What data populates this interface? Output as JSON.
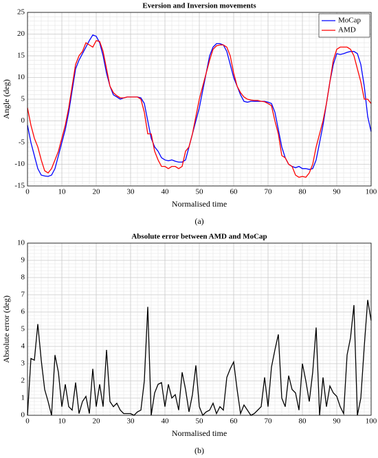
{
  "chart_data": [
    {
      "type": "line",
      "title": "Eversion and Inversion movements",
      "xlabel": "Normalised time",
      "ylabel": "Angle (deg)",
      "caption": "(a)",
      "x": [
        0,
        1,
        2,
        3,
        4,
        5,
        6,
        7,
        8,
        9,
        10,
        11,
        12,
        13,
        14,
        15,
        16,
        17,
        18,
        19,
        20,
        21,
        22,
        23,
        24,
        25,
        26,
        27,
        28,
        29,
        30,
        31,
        32,
        33,
        34,
        35,
        36,
        37,
        38,
        39,
        40,
        41,
        42,
        43,
        44,
        45,
        46,
        47,
        48,
        49,
        50,
        51,
        52,
        53,
        54,
        55,
        56,
        57,
        58,
        59,
        60,
        61,
        62,
        63,
        64,
        65,
        66,
        67,
        68,
        69,
        70,
        71,
        72,
        73,
        74,
        75,
        76,
        77,
        78,
        79,
        80,
        81,
        82,
        83,
        84,
        85,
        86,
        87,
        88,
        89,
        90,
        91,
        92,
        93,
        94,
        95,
        96,
        97,
        98,
        99,
        100
      ],
      "series": [
        {
          "name": "MoCap",
          "color": "#0000ff",
          "values": [
            -1,
            -5,
            -8,
            -11,
            -12.5,
            -12.7,
            -12.8,
            -12.5,
            -11,
            -8,
            -5,
            -2,
            2,
            7,
            12,
            14,
            15.5,
            17,
            18.5,
            19.8,
            19.5,
            18,
            15,
            11,
            8,
            6,
            5.5,
            5,
            5.3,
            5.5,
            5.5,
            5.5,
            5.5,
            5.3,
            4,
            0,
            -4,
            -6,
            -7,
            -8.5,
            -9,
            -9.2,
            -9,
            -9.3,
            -9.5,
            -9.5,
            -9,
            -6,
            -3,
            0,
            3,
            7,
            11,
            15,
            17,
            17.8,
            17.8,
            17.5,
            16,
            13,
            10,
            8,
            6,
            4.5,
            4.3,
            4.5,
            4.5,
            4.5,
            4.5,
            4.5,
            4.3,
            4,
            2,
            -2,
            -6,
            -8.5,
            -10,
            -10.5,
            -10.8,
            -10.5,
            -11,
            -11,
            -11.2,
            -11,
            -9,
            -5,
            -1,
            4,
            9,
            13,
            15.5,
            15.3,
            15.5,
            15.8,
            16,
            16,
            15.5,
            13,
            8,
            1,
            -2.5
          ]
        },
        {
          "name": "AMD",
          "color": "#ff0000",
          "values": [
            3,
            -1,
            -4,
            -6,
            -9,
            -11.5,
            -12,
            -11,
            -9,
            -7,
            -4,
            -1,
            3,
            8,
            13,
            15,
            16,
            18,
            17.5,
            17,
            18.5,
            18.3,
            16,
            12,
            8,
            6.5,
            5.8,
            5.3,
            5.3,
            5.5,
            5.5,
            5.5,
            5.5,
            5,
            2,
            -3,
            -3,
            -7,
            -9,
            -10.5,
            -10.5,
            -11,
            -10.5,
            -10.5,
            -11,
            -10.5,
            -7,
            -6,
            -3,
            1,
            5,
            8,
            11,
            14,
            16.5,
            17.3,
            17.5,
            17.5,
            17,
            15,
            11,
            8,
            6.5,
            5.5,
            5,
            4.8,
            4.7,
            4.7,
            4.5,
            4.4,
            4,
            3.5,
            0,
            -3,
            -8,
            -8.5,
            -10,
            -10.5,
            -12.5,
            -13,
            -12.8,
            -13,
            -12,
            -10,
            -6,
            -3,
            0,
            4,
            9,
            14,
            16.5,
            17,
            17,
            17,
            16.5,
            15,
            12,
            9,
            5,
            5,
            4
          ]
        }
      ],
      "xlim": [
        0,
        100
      ],
      "xticks": [
        0,
        10,
        20,
        30,
        40,
        50,
        60,
        70,
        80,
        90,
        100
      ],
      "ylim": [
        -15,
        25
      ],
      "yticks": [
        -15,
        -10,
        -5,
        0,
        5,
        10,
        15,
        20,
        25
      ],
      "grid": true,
      "minor_grid": true,
      "legend": "upper right"
    },
    {
      "type": "line",
      "title": "Absolute error between AMD and MoCap",
      "xlabel": "Normalised time",
      "ylabel": "Absolute error (deg)",
      "caption": "(b)",
      "x": [
        0,
        1,
        2,
        3,
        4,
        5,
        6,
        7,
        8,
        9,
        10,
        11,
        12,
        13,
        14,
        15,
        16,
        17,
        18,
        19,
        20,
        21,
        22,
        23,
        24,
        25,
        26,
        27,
        28,
        29,
        30,
        31,
        32,
        33,
        34,
        35,
        36,
        37,
        38,
        39,
        40,
        41,
        42,
        43,
        44,
        45,
        46,
        47,
        48,
        49,
        50,
        51,
        52,
        53,
        54,
        55,
        56,
        57,
        58,
        59,
        60,
        61,
        62,
        63,
        64,
        65,
        66,
        67,
        68,
        69,
        70,
        71,
        72,
        73,
        74,
        75,
        76,
        77,
        78,
        79,
        80,
        81,
        82,
        83,
        84,
        85,
        86,
        87,
        88,
        89,
        90,
        91,
        92,
        93,
        94,
        95,
        96,
        97,
        98,
        99,
        100
      ],
      "series": [
        {
          "color": "#000000",
          "values": [
            0,
            3.3,
            3.2,
            5.3,
            3.2,
            1.5,
            0.8,
            0,
            3.5,
            2.5,
            0.5,
            1.8,
            0.5,
            0.3,
            1.9,
            0.1,
            0.8,
            1.1,
            0.1,
            2.7,
            0.5,
            1.8,
            0.5,
            3.8,
            0.8,
            0.5,
            0.7,
            0.3,
            0.1,
            0.1,
            0.1,
            0,
            0.2,
            0.3,
            2,
            6.3,
            0,
            1.3,
            1.8,
            1.9,
            0.5,
            1.8,
            1,
            1.2,
            0.3,
            2.5,
            1.5,
            0.2,
            1.2,
            2.9,
            0.5,
            0,
            0.2,
            0.3,
            0.7,
            0.1,
            0.5,
            0.3,
            2.2,
            2.7,
            3.1,
            1.5,
            0.1,
            0.6,
            0.3,
            0,
            0.1,
            0.3,
            0.5,
            2.2,
            0.5,
            2.8,
            3.8,
            4.7,
            1,
            0.5,
            2.3,
            1.5,
            1.3,
            0.3,
            3,
            2,
            0.8,
            2.5,
            5.1,
            0,
            2.2,
            0.5,
            1.7,
            1.3,
            1.1,
            0.5,
            0.1,
            3.5,
            4.5,
            6.4,
            0,
            1,
            4,
            6.7,
            5.5
          ]
        }
      ],
      "xlim": [
        0,
        100
      ],
      "xticks": [
        0,
        10,
        20,
        30,
        40,
        50,
        60,
        70,
        80,
        90,
        100
      ],
      "ylim": [
        0,
        10
      ],
      "yticks": [
        0,
        1,
        2,
        3,
        4,
        5,
        6,
        7,
        8,
        9,
        10
      ],
      "grid": true,
      "minor_grid": true
    }
  ]
}
